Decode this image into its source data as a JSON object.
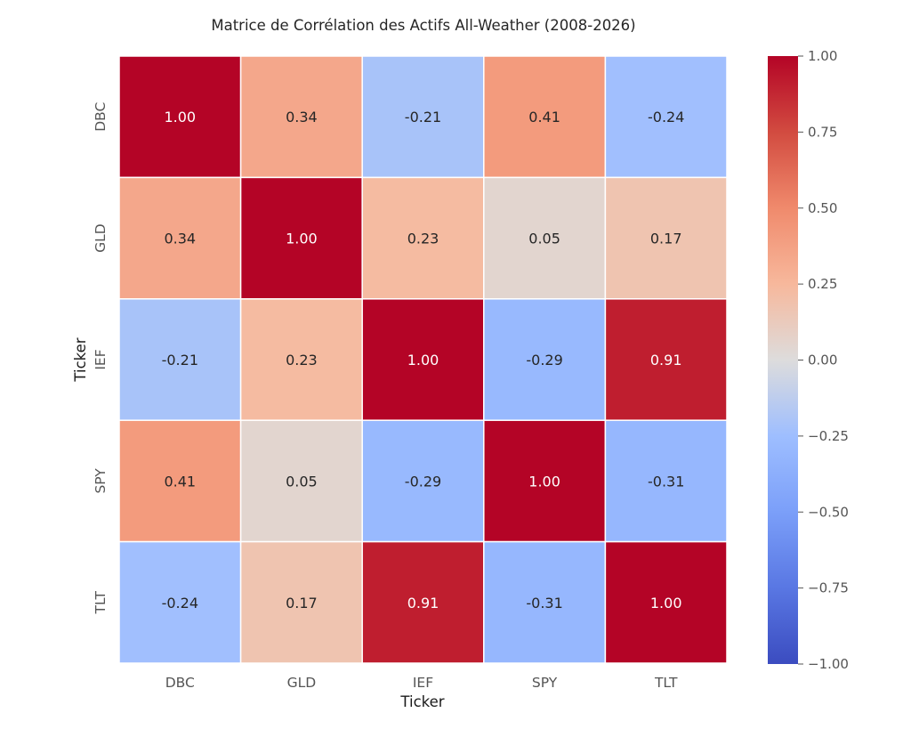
{
  "chart_data": {
    "type": "heatmap",
    "title": "Matrice de Corrélation des Actifs All-Weather (2008-2026)",
    "xlabel": "Ticker",
    "ylabel": "Ticker",
    "x_categories": [
      "DBC",
      "GLD",
      "IEF",
      "SPY",
      "TLT"
    ],
    "y_categories": [
      "DBC",
      "GLD",
      "IEF",
      "SPY",
      "TLT"
    ],
    "values": [
      [
        1.0,
        0.34,
        -0.21,
        0.41,
        -0.24
      ],
      [
        0.34,
        1.0,
        0.23,
        0.05,
        0.17
      ],
      [
        -0.21,
        0.23,
        1.0,
        -0.29,
        0.91
      ],
      [
        0.41,
        0.05,
        -0.29,
        1.0,
        -0.31
      ],
      [
        -0.24,
        0.17,
        0.91,
        -0.31,
        1.0
      ]
    ],
    "value_labels": [
      [
        "1.00",
        "0.34",
        "-0.21",
        "0.41",
        "-0.24"
      ],
      [
        "0.34",
        "1.00",
        "0.23",
        "0.05",
        "0.17"
      ],
      [
        "-0.21",
        "0.23",
        "1.00",
        "-0.29",
        "0.91"
      ],
      [
        "0.41",
        "0.05",
        "-0.29",
        "1.00",
        "-0.31"
      ],
      [
        "-0.24",
        "0.17",
        "0.91",
        "-0.31",
        "1.00"
      ]
    ],
    "colormap": "coolwarm",
    "vmin": -1.0,
    "vmax": 1.0,
    "colorbar": {
      "ticks": [
        1.0,
        0.75,
        0.5,
        0.25,
        0.0,
        -0.25,
        -0.5,
        -0.75,
        -1.0
      ],
      "tick_labels": [
        "1.00",
        "0.75",
        "0.50",
        "0.25",
        "0.00",
        "−0.25",
        "−0.50",
        "−0.75",
        "−1.00"
      ]
    },
    "colors": {
      "cold": "#3b4cc0",
      "neutral": "#dddddd",
      "hot": "#b40426",
      "grid_line": "#ffffff"
    }
  }
}
